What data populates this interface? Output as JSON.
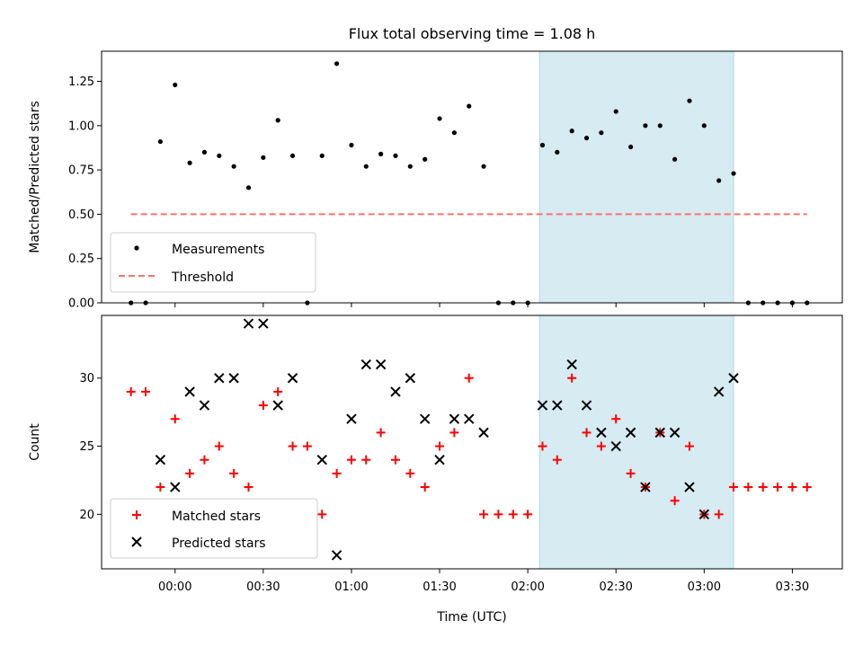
{
  "figure": {
    "title": "Flux total observing time = 1.08 h",
    "xlabel": "Time (UTC)"
  },
  "chart_data": [
    {
      "type": "scatter",
      "title": "Flux total observing time = 1.08 h",
      "xlabel": "",
      "ylabel": "Matched/Predicted stars",
      "ylim": [
        0.0,
        1.42
      ],
      "yticks": [
        "0.00",
        "0.25",
        "0.50",
        "0.75",
        "1.00",
        "1.25"
      ],
      "xlim": [
        "23:35",
        "03:47"
      ],
      "highlight_span": [
        "02:04",
        "03:10"
      ],
      "highlight_color": "#add8e6",
      "legend_position": "lower-left",
      "series": [
        {
          "name": "Measurements",
          "marker": "dot",
          "color": "#000000",
          "x": [
            "23:45",
            "23:50",
            "23:55",
            "00:00",
            "00:05",
            "00:10",
            "00:15",
            "00:20",
            "00:25",
            "00:30",
            "00:35",
            "00:40",
            "00:45",
            "00:50",
            "00:55",
            "01:00",
            "01:05",
            "01:10",
            "01:15",
            "01:20",
            "01:25",
            "01:30",
            "01:35",
            "01:40",
            "01:45",
            "01:50",
            "01:55",
            "02:00",
            "02:05",
            "02:10",
            "02:15",
            "02:20",
            "02:25",
            "02:30",
            "02:35",
            "02:40",
            "02:45",
            "02:50",
            "02:55",
            "03:00",
            "03:05",
            "03:10",
            "03:15",
            "03:20",
            "03:25",
            "03:30",
            "03:35"
          ],
          "y": [
            0.0,
            0.0,
            0.91,
            1.23,
            0.79,
            0.85,
            0.83,
            0.77,
            0.65,
            0.82,
            1.03,
            0.83,
            0.0,
            0.83,
            1.35,
            0.89,
            0.77,
            0.84,
            0.83,
            0.77,
            0.81,
            1.04,
            0.96,
            1.11,
            0.77,
            0.0,
            0.0,
            0.0,
            0.89,
            0.85,
            0.97,
            0.93,
            0.96,
            1.08,
            0.88,
            1.0,
            1.0,
            0.81,
            1.14,
            1.0,
            0.69,
            0.73,
            0.0,
            0.0,
            0.0,
            0.0,
            0.0
          ]
        },
        {
          "name": "Threshold",
          "style": "dashed",
          "color": "#ff7070",
          "x": [
            "23:45",
            "03:35"
          ],
          "y": [
            0.5,
            0.5
          ]
        }
      ]
    },
    {
      "type": "scatter",
      "title": "",
      "xlabel": "Time (UTC)",
      "ylabel": "Count",
      "ylim": [
        16.0,
        34.6
      ],
      "yticks": [
        "20",
        "25",
        "30"
      ],
      "xlim": [
        "23:35",
        "03:47"
      ],
      "xticks": [
        "00:00",
        "00:30",
        "01:00",
        "01:30",
        "02:00",
        "02:30",
        "03:00",
        "03:30"
      ],
      "highlight_span": [
        "02:04",
        "03:10"
      ],
      "highlight_color": "#add8e6",
      "legend_position": "lower-left",
      "series": [
        {
          "name": "Matched stars",
          "marker": "plus",
          "color": "#ff0000",
          "x": [
            "23:45",
            "23:50",
            "23:55",
            "00:00",
            "00:05",
            "00:10",
            "00:15",
            "00:20",
            "00:25",
            "00:30",
            "00:35",
            "00:40",
            "00:45",
            "00:50",
            "00:55",
            "01:00",
            "01:05",
            "01:10",
            "01:15",
            "01:20",
            "01:25",
            "01:30",
            "01:35",
            "01:40",
            "01:45",
            "01:50",
            "01:55",
            "02:00",
            "02:05",
            "02:10",
            "02:15",
            "02:20",
            "02:25",
            "02:30",
            "02:35",
            "02:40",
            "02:45",
            "02:50",
            "02:55",
            "03:00",
            "03:05",
            "03:10",
            "03:15",
            "03:20",
            "03:25",
            "03:30",
            "03:35"
          ],
          "y": [
            29,
            29,
            22,
            27,
            23,
            24,
            25,
            23,
            22,
            28,
            29,
            25,
            25,
            20,
            23,
            24,
            24,
            26,
            24,
            23,
            22,
            25,
            26,
            30,
            20,
            20,
            20,
            20,
            25,
            24,
            30,
            26,
            25,
            27,
            23,
            22,
            26,
            21,
            25,
            20,
            20,
            22,
            22,
            22,
            22,
            22,
            22
          ]
        },
        {
          "name": "Predicted stars",
          "marker": "x",
          "color": "#000000",
          "x": [
            "23:55",
            "00:00",
            "00:05",
            "00:10",
            "00:15",
            "00:20",
            "00:25",
            "00:30",
            "00:35",
            "00:40",
            "00:50",
            "00:55",
            "01:00",
            "01:05",
            "01:10",
            "01:15",
            "01:20",
            "01:25",
            "01:30",
            "01:35",
            "01:40",
            "01:45",
            "02:05",
            "02:10",
            "02:15",
            "02:20",
            "02:25",
            "02:30",
            "02:35",
            "02:40",
            "02:45",
            "02:50",
            "02:55",
            "03:00",
            "03:05",
            "03:10"
          ],
          "y": [
            24,
            22,
            29,
            28,
            30,
            30,
            34,
            34,
            28,
            30,
            24,
            17,
            27,
            31,
            31,
            29,
            30,
            27,
            24,
            27,
            27,
            26,
            28,
            28,
            31,
            28,
            26,
            25,
            26,
            22,
            26,
            26,
            22,
            20,
            29,
            30
          ]
        }
      ]
    }
  ]
}
